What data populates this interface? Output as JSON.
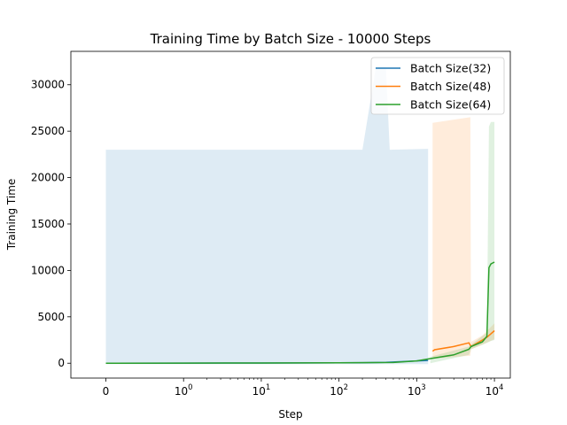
{
  "chart_data": {
    "type": "line",
    "title": "Training Time by Batch Size - 10000 Steps",
    "xlabel": "Step",
    "ylabel": "Training Time",
    "xscale": "symlog",
    "xlim": [
      -0.45,
      16000
    ],
    "ylim": [
      -1600,
      33600
    ],
    "grid": false,
    "legend_position": "top-right",
    "x_tick_labels": [
      "0",
      "10^0",
      "10^1",
      "10^2",
      "10^3",
      "10^4"
    ],
    "x_ticks": [
      0,
      1,
      10,
      100,
      1000,
      10000
    ],
    "y_ticks": [
      0,
      5000,
      10000,
      15000,
      20000,
      25000,
      30000
    ],
    "y_tick_labels": [
      "0",
      "5000",
      "10000",
      "15000",
      "20000",
      "25000",
      "30000"
    ],
    "series": [
      {
        "name": "Batch Size(32)",
        "color": "#1f77b4",
        "x": [
          0,
          1,
          10,
          100,
          200,
          400,
          1000,
          1400
        ],
        "y": [
          0,
          10,
          20,
          40,
          60,
          100,
          250,
          300
        ],
        "band_x": [
          0,
          200,
          300,
          400,
          450,
          1400
        ],
        "band_low": [
          -100,
          -100,
          -100,
          -100,
          -100,
          -100
        ],
        "band_high": [
          23000,
          23000,
          32000,
          32000,
          23000,
          23100
        ]
      },
      {
        "name": "Batch Size(48)",
        "color": "#ff7f0e",
        "x": [
          1600,
          1700,
          3000,
          4700,
          5000,
          7000,
          8000,
          10000
        ],
        "y": [
          1300,
          1450,
          1800,
          2200,
          1800,
          2500,
          2800,
          3500
        ],
        "band_x": [
          1600,
          4900,
          5000,
          7000,
          10000
        ],
        "band_low": [
          500,
          800,
          1500,
          2000,
          2600
        ],
        "band_high": [
          25900,
          26500,
          2300,
          3000,
          4300
        ]
      },
      {
        "name": "Batch Size(64)",
        "color": "#2ca02c",
        "x": [
          0,
          1,
          10,
          100,
          500,
          1000,
          1500,
          3000,
          4700,
          5000,
          7000,
          8000,
          8500,
          9000,
          10000
        ],
        "y": [
          0,
          10,
          20,
          40,
          80,
          250,
          500,
          900,
          1500,
          1800,
          2300,
          2900,
          10300,
          10700,
          10900
        ],
        "band_x": [
          1500,
          4700,
          5000,
          8000,
          8500,
          9000,
          10000
        ],
        "band_low": [
          0,
          900,
          1500,
          2200,
          2300,
          2400,
          2500
        ],
        "band_high": [
          700,
          1800,
          2000,
          3300,
          25500,
          26000,
          26000
        ]
      }
    ]
  }
}
